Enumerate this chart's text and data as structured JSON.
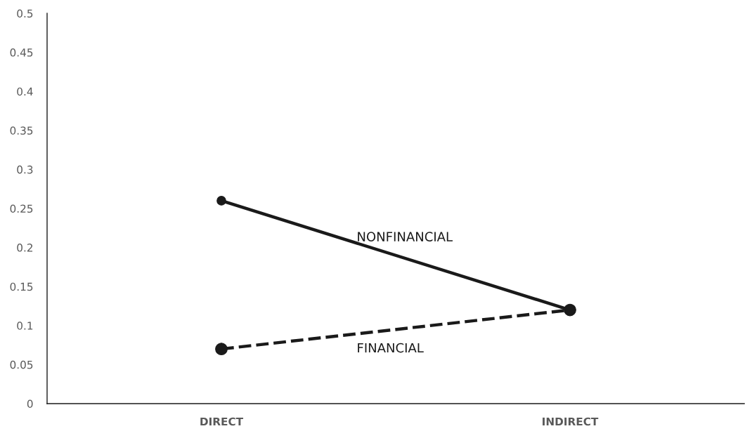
{
  "chart_data": {
    "type": "line",
    "categories": [
      "DIRECT",
      "INDIRECT"
    ],
    "series": [
      {
        "name": "NONFINANCIAL",
        "color": "#1a1a1a",
        "values": [
          0.26,
          0.12
        ],
        "line_style": "solid"
      },
      {
        "name": "FINANCIAL",
        "color": "#1a1a1a",
        "values": [
          0.07,
          0.12
        ],
        "line_style": "dashed"
      }
    ],
    "ylim": [
      0,
      0.5
    ],
    "yticks": [
      0,
      0.05,
      0.1,
      0.15,
      0.2,
      0.25,
      0.3,
      0.35,
      0.4,
      0.45,
      0.5
    ],
    "marker": "circle",
    "grid": false,
    "legend": false
  }
}
